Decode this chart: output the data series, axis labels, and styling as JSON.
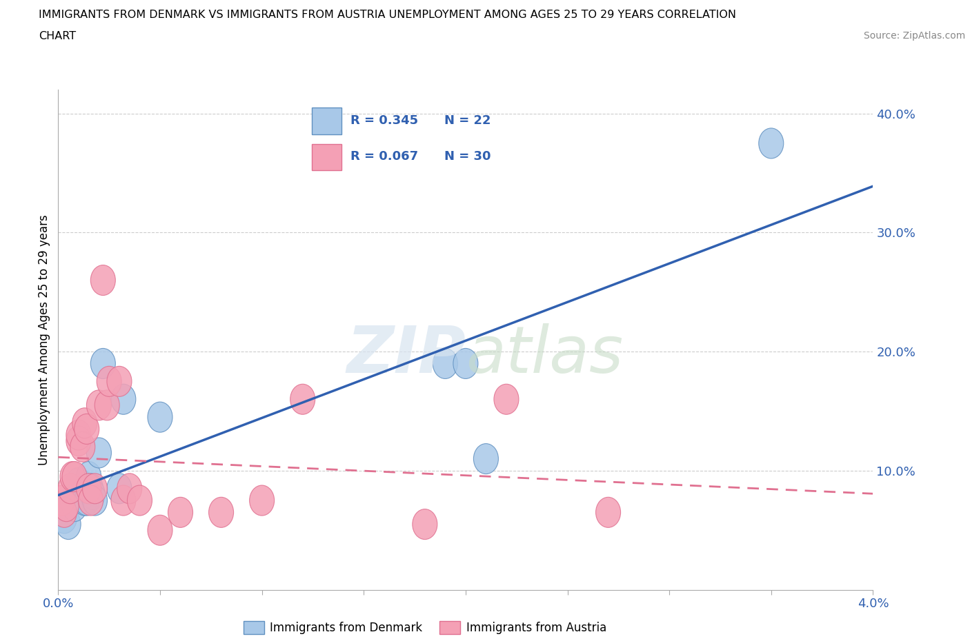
{
  "title_line1": "IMMIGRANTS FROM DENMARK VS IMMIGRANTS FROM AUSTRIA UNEMPLOYMENT AMONG AGES 25 TO 29 YEARS CORRELATION",
  "title_line2": "CHART",
  "source": "Source: ZipAtlas.com",
  "ylabel": "Unemployment Among Ages 25 to 29 years",
  "xlim": [
    0.0,
    0.04
  ],
  "ylim": [
    0.0,
    0.42
  ],
  "xticks": [
    0.0,
    0.005,
    0.01,
    0.015,
    0.02,
    0.025,
    0.03,
    0.035,
    0.04
  ],
  "xticklabels": [
    "0.0%",
    "",
    "",
    "",
    "",
    "",
    "",
    "",
    "4.0%"
  ],
  "yticks": [
    0.1,
    0.2,
    0.3,
    0.4
  ],
  "yticklabels": [
    "10.0%",
    "20.0%",
    "30.0%",
    "40.0%"
  ],
  "denmark_color": "#a8c8e8",
  "austria_color": "#f4a0b5",
  "denmark_edge": "#6090c0",
  "austria_edge": "#e07090",
  "trend_denmark_color": "#3060b0",
  "trend_austria_color": "#e07090",
  "R_denmark": 0.345,
  "N_denmark": 22,
  "R_austria": 0.067,
  "N_austria": 30,
  "denmark_x": [
    0.0003,
    0.0005,
    0.0007,
    0.0008,
    0.001,
    0.0011,
    0.0012,
    0.0013,
    0.0014,
    0.0015,
    0.0016,
    0.0017,
    0.0018,
    0.002,
    0.0022,
    0.003,
    0.0032,
    0.005,
    0.019,
    0.02,
    0.021,
    0.035
  ],
  "denmark_y": [
    0.06,
    0.055,
    0.075,
    0.07,
    0.09,
    0.085,
    0.08,
    0.075,
    0.075,
    0.095,
    0.085,
    0.08,
    0.075,
    0.115,
    0.19,
    0.085,
    0.16,
    0.145,
    0.19,
    0.19,
    0.11,
    0.375
  ],
  "austria_x": [
    0.0002,
    0.0003,
    0.0004,
    0.0006,
    0.0007,
    0.0008,
    0.001,
    0.001,
    0.0012,
    0.0013,
    0.0014,
    0.0015,
    0.0016,
    0.0018,
    0.002,
    0.0022,
    0.0024,
    0.0025,
    0.003,
    0.0032,
    0.0035,
    0.004,
    0.005,
    0.006,
    0.008,
    0.01,
    0.012,
    0.018,
    0.022,
    0.027
  ],
  "austria_y": [
    0.075,
    0.065,
    0.07,
    0.085,
    0.095,
    0.095,
    0.125,
    0.13,
    0.12,
    0.14,
    0.135,
    0.085,
    0.075,
    0.085,
    0.155,
    0.26,
    0.155,
    0.175,
    0.175,
    0.075,
    0.085,
    0.075,
    0.05,
    0.065,
    0.065,
    0.075,
    0.16,
    0.055,
    0.16,
    0.065
  ],
  "background_color": "#ffffff",
  "grid_color": "#cccccc",
  "legend_box_color": "#e8e8f0",
  "legend_text_color": "#3060b0"
}
